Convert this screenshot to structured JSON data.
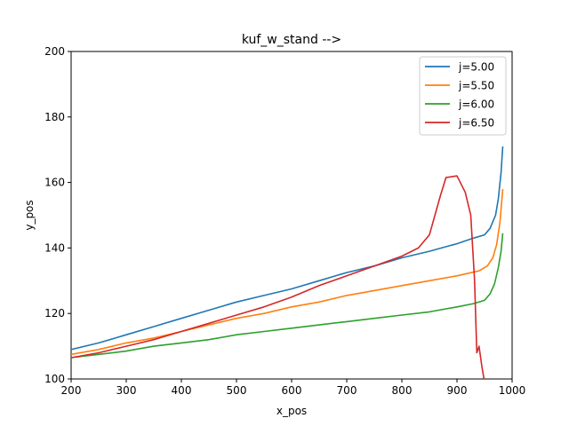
{
  "chart_data": {
    "type": "line",
    "title": "kuf_w_stand -->",
    "xlabel": "x_pos",
    "ylabel": "y_pos",
    "xlim": [
      200,
      1000
    ],
    "ylim": [
      100,
      200
    ],
    "xticks": [
      200,
      300,
      400,
      500,
      600,
      700,
      800,
      900,
      1000
    ],
    "yticks": [
      100,
      120,
      140,
      160,
      180,
      200
    ],
    "grid": false,
    "legend_position": "top-right",
    "series": [
      {
        "name": "j=5.00",
        "color": "#1f77b4",
        "x": [
          200,
          250,
          300,
          350,
          400,
          450,
          500,
          550,
          600,
          650,
          700,
          750,
          800,
          850,
          900,
          930,
          950,
          960,
          970,
          975,
          980,
          983
        ],
        "y": [
          109,
          111,
          113.5,
          116,
          118.5,
          121,
          123.5,
          125.5,
          127.5,
          130,
          132.5,
          134.5,
          137,
          139,
          141.3,
          143,
          144,
          146,
          150,
          155,
          163,
          171
        ]
      },
      {
        "name": "j=5.50",
        "color": "#ff7f0e",
        "x": [
          200,
          250,
          300,
          350,
          400,
          450,
          500,
          550,
          600,
          650,
          700,
          750,
          800,
          850,
          900,
          940,
          955,
          965,
          972,
          978,
          983
        ],
        "y": [
          107.5,
          109,
          111,
          112.5,
          114.5,
          116.5,
          118.5,
          120,
          122,
          123.5,
          125.5,
          127,
          128.5,
          130,
          131.5,
          133,
          134.5,
          137,
          141,
          148,
          158
        ]
      },
      {
        "name": "j=6.00",
        "color": "#2ca02c",
        "x": [
          200,
          250,
          300,
          350,
          400,
          450,
          500,
          550,
          600,
          650,
          700,
          750,
          800,
          850,
          900,
          930,
          950,
          960,
          968,
          975,
          980,
          983
        ],
        "y": [
          106.5,
          107.5,
          108.5,
          110,
          111,
          112,
          113.5,
          114.5,
          115.5,
          116.5,
          117.5,
          118.5,
          119.5,
          120.5,
          122,
          123,
          124,
          126,
          129,
          134,
          139,
          144.5
        ]
      },
      {
        "name": "j=6.50",
        "color": "#d62728",
        "x": [
          200,
          250,
          300,
          350,
          400,
          450,
          500,
          550,
          600,
          650,
          700,
          750,
          800,
          830,
          850,
          860,
          870,
          880,
          900,
          915,
          925,
          932,
          936,
          940,
          945,
          950
        ],
        "y": [
          106.5,
          108,
          110,
          112,
          114.5,
          117,
          119.5,
          122,
          125,
          128.5,
          131.5,
          134.5,
          137.5,
          140,
          144,
          150,
          156,
          161.5,
          162,
          157,
          150,
          130,
          108,
          110,
          104,
          99
        ]
      }
    ]
  }
}
